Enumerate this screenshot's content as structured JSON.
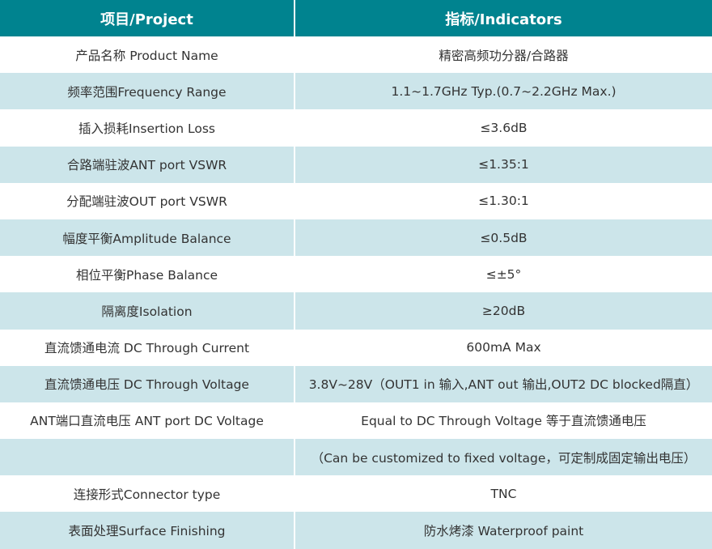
{
  "colors": {
    "header_bg": "#00838f",
    "alt_row_bg": "#cce5ea",
    "text": "#333333"
  },
  "header": {
    "project": "项目/Project",
    "indicators": "指标/Indicators"
  },
  "rows": [
    {
      "project": "产品名称 Product Name",
      "indicator": "精密高频功分器/合路器"
    },
    {
      "project": "频率范围Frequency Range",
      "indicator": "1.1~1.7GHz Typ.(0.7~2.2GHz Max.)"
    },
    {
      "project": "插入损耗Insertion Loss",
      "indicator": "≤3.6dB"
    },
    {
      "project": "合路端驻波ANT port VSWR",
      "indicator": "≤1.35:1"
    },
    {
      "project": "分配端驻波OUT port VSWR",
      "indicator": "≤1.30:1"
    },
    {
      "project": "幅度平衡Amplitude Balance",
      "indicator": "≤0.5dB"
    },
    {
      "project": "相位平衡Phase Balance",
      "indicator": "≤±5°"
    },
    {
      "project": "隔离度Isolation",
      "indicator": "≥20dB"
    },
    {
      "project": "直流馈通电流 DC Through Current",
      "indicator": "600mA Max"
    },
    {
      "project": "直流馈通电压 DC Through Voltage",
      "indicator": "3.8V~28V（OUT1 in 输入,ANT out 输出,OUT2 DC blocked隔直）"
    },
    {
      "project": "ANT端口直流电压 ANT port DC Voltage",
      "indicator": "Equal to DC Through Voltage 等于直流馈通电压"
    },
    {
      "project": "",
      "indicator": "（Can be customized to fixed voltage，可定制成固定输出电压）"
    },
    {
      "project": "连接形式Connector type",
      "indicator": "TNC"
    },
    {
      "project": "表面处理Surface Finishing",
      "indicator": "防水烤漆 Waterproof paint"
    }
  ]
}
